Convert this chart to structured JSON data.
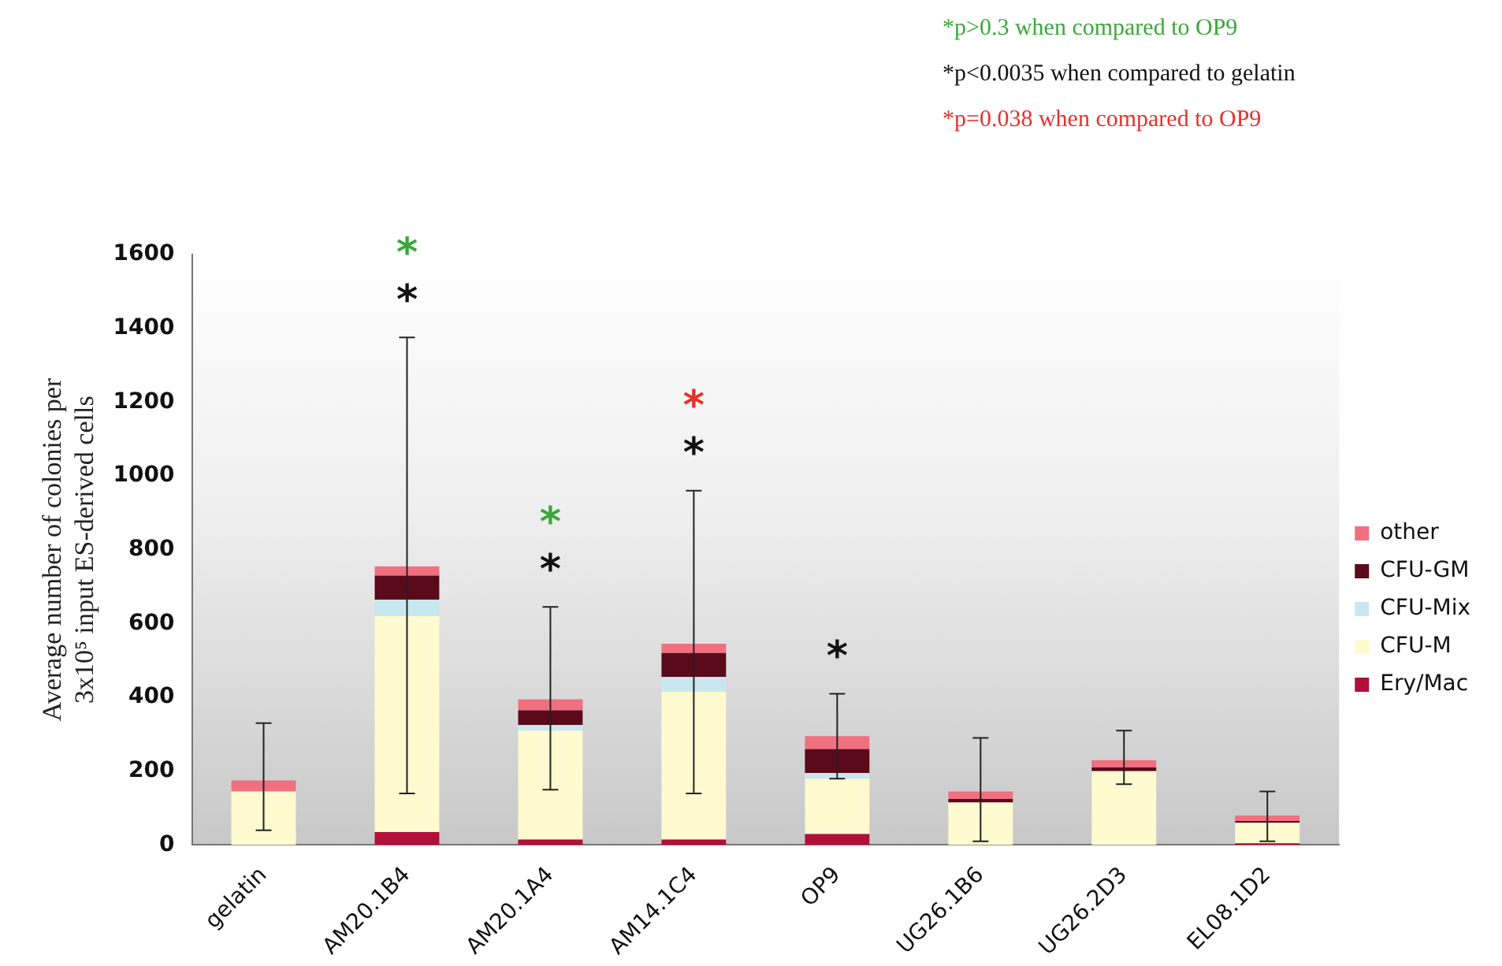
{
  "chart_data": {
    "type": "bar",
    "stacked": true,
    "ylabel": "Average number of colonies per 3x10⁵ input ES-derived cells",
    "categories": [
      "gelatin",
      "AM20.1B4",
      "AM20.1A4",
      "AM14.1C4",
      "OP9",
      "UG26.1B6",
      "UG26.2D3",
      "EL08.1D2"
    ],
    "series": [
      {
        "name": "Ery/Mac",
        "color": "#b0103a",
        "values": [
          0,
          35,
          15,
          15,
          30,
          0,
          0,
          5
        ]
      },
      {
        "name": "CFU-M",
        "color": "#fffad0",
        "values": [
          145,
          585,
          295,
          400,
          150,
          115,
          200,
          55
        ]
      },
      {
        "name": "CFU-Mix",
        "color": "#c8e8f0",
        "values": [
          0,
          45,
          15,
          40,
          15,
          0,
          0,
          0
        ]
      },
      {
        "name": "CFU-GM",
        "color": "#5a0a1a",
        "values": [
          0,
          65,
          40,
          65,
          65,
          10,
          10,
          5
        ]
      },
      {
        "name": "other",
        "color": "#f07080",
        "values": [
          30,
          25,
          30,
          25,
          35,
          20,
          20,
          15
        ],
        "errors": [
          [
            40,
            330
          ],
          [
            140,
            1375
          ],
          [
            150,
            645
          ],
          [
            140,
            960
          ],
          [
            180,
            410
          ],
          [
            10,
            290
          ],
          [
            165,
            310
          ],
          [
            10,
            145
          ]
        ]
      }
    ],
    "ylim": [
      0,
      1600
    ],
    "yticks": [
      0,
      200,
      400,
      600,
      800,
      1000,
      1200,
      1400,
      1600
    ],
    "grid": false,
    "legend": "right",
    "annotations": [
      "*p>0.3 when compared to OP9",
      "*p<0.0035 when compared to gelatin",
      "*p=0.038 when compared to OP9",
      "*",
      "*",
      "*",
      "*",
      "*",
      "*",
      "*"
    ]
  }
}
